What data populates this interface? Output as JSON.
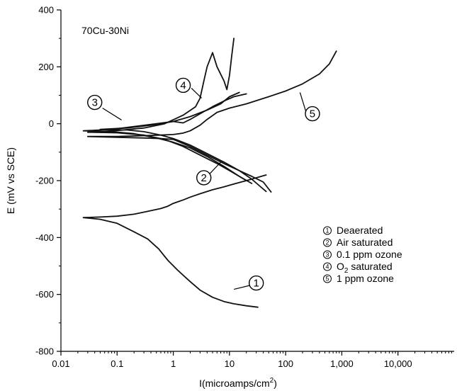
{
  "chart_data": {
    "type": "line",
    "annotation": "70Cu-30Ni",
    "xlabel": "I(microamps/cm",
    "xlabel_sup": "2",
    "xlabel_end": ")",
    "ylabel": "E (mV vs SCE)",
    "xscale": "log",
    "xlim": [
      0.01,
      100000
    ],
    "ylim": [
      -800,
      400
    ],
    "x_ticks": [
      0.01,
      0.1,
      1,
      10,
      100,
      1000,
      10000
    ],
    "x_tick_labels": [
      "0.01",
      "0.1",
      "1",
      "10",
      "100",
      "1,000",
      "10,000"
    ],
    "y_ticks": [
      400,
      200,
      0,
      -200,
      -400,
      -600,
      -800
    ],
    "y_tick_labels": [
      "400",
      "200",
      "0",
      "-200",
      "-400",
      "-600",
      "-800"
    ],
    "legend": {
      "placement": "bottom-right",
      "items": [
        {
          "marker": "1",
          "label": "Deaerated"
        },
        {
          "marker": "2",
          "label": "Air saturated"
        },
        {
          "marker": "3",
          "label": "0.1 ppm ozone"
        },
        {
          "marker": "4",
          "label": "O",
          "sub": "2",
          "label_end": " saturated"
        },
        {
          "marker": "5",
          "label": "1 ppm ozone"
        }
      ]
    },
    "series": [
      {
        "marker": "1",
        "points": [
          [
            0.025,
            -330
          ],
          [
            0.05,
            -328
          ],
          [
            0.1,
            -325
          ],
          [
            0.2,
            -318
          ],
          [
            0.35,
            -308
          ],
          [
            0.6,
            -298
          ],
          [
            0.8,
            -290
          ],
          [
            1,
            -280
          ],
          [
            1.5,
            -268
          ],
          [
            2,
            -258
          ],
          [
            3,
            -246
          ],
          [
            5,
            -232
          ],
          [
            8,
            -222
          ],
          [
            12,
            -212
          ],
          [
            20,
            -200
          ],
          [
            30,
            -190
          ],
          [
            45,
            -180
          ],
          [
            0.025,
            -330
          ],
          [
            0.05,
            -336
          ],
          [
            0.1,
            -350
          ],
          [
            0.2,
            -380
          ],
          [
            0.35,
            -405
          ],
          [
            0.55,
            -440
          ],
          [
            0.8,
            -480
          ],
          [
            1.2,
            -515
          ],
          [
            2,
            -555
          ],
          [
            3,
            -585
          ],
          [
            5,
            -610
          ],
          [
            8,
            -625
          ],
          [
            12,
            -633
          ],
          [
            20,
            -640
          ],
          [
            32,
            -645
          ]
        ]
      },
      {
        "marker": "2",
        "points": [
          [
            0.05,
            -20
          ],
          [
            0.15,
            -22
          ],
          [
            0.3,
            -28
          ],
          [
            0.6,
            -40
          ],
          [
            1,
            -52
          ],
          [
            2,
            -75
          ],
          [
            4,
            -105
          ],
          [
            8,
            -135
          ],
          [
            15,
            -165
          ],
          [
            25,
            -195
          ],
          [
            35,
            -220
          ],
          [
            45,
            -238
          ],
          [
            0.05,
            -20
          ],
          [
            0.15,
            -15
          ],
          [
            0.4,
            -5
          ],
          [
            1,
            8
          ],
          [
            2,
            25
          ],
          [
            4,
            48
          ],
          [
            7,
            70
          ],
          [
            10,
            95
          ],
          [
            15,
            110
          ]
        ]
      },
      {
        "marker": "3",
        "points": [
          [
            0.025,
            -25
          ],
          [
            0.08,
            -28
          ],
          [
            0.2,
            -35
          ],
          [
            0.5,
            -50
          ],
          [
            1,
            -65
          ],
          [
            2,
            -85
          ],
          [
            4,
            -115
          ],
          [
            8,
            -150
          ],
          [
            15,
            -185
          ],
          [
            25,
            -210
          ],
          [
            0.025,
            -25
          ],
          [
            0.08,
            -20
          ],
          [
            0.2,
            -10
          ],
          [
            0.5,
            0
          ],
          [
            1,
            8
          ],
          [
            1.5,
            3
          ],
          [
            2,
            15
          ],
          [
            3,
            35
          ],
          [
            5,
            60
          ],
          [
            8,
            80
          ],
          [
            12,
            95
          ],
          [
            20,
            105
          ]
        ]
      },
      {
        "marker": "4",
        "points": [
          [
            0.03,
            -30
          ],
          [
            0.1,
            -32
          ],
          [
            0.3,
            -40
          ],
          [
            0.7,
            -55
          ],
          [
            1.5,
            -80
          ],
          [
            3,
            -110
          ],
          [
            6,
            -140
          ],
          [
            10,
            -165
          ],
          [
            15,
            -185
          ],
          [
            20,
            -200
          ],
          [
            0.03,
            -30
          ],
          [
            0.1,
            -24
          ],
          [
            0.3,
            -15
          ],
          [
            0.7,
            0
          ],
          [
            1.5,
            30
          ],
          [
            2.5,
            60
          ],
          [
            3,
            90
          ],
          [
            3.5,
            150
          ],
          [
            4,
            200
          ],
          [
            5,
            250
          ],
          [
            6,
            200
          ],
          [
            8,
            150
          ],
          [
            9,
            120
          ],
          [
            10,
            170
          ],
          [
            11,
            240
          ],
          [
            12,
            300
          ]
        ]
      },
      {
        "marker": "5",
        "points": [
          [
            0.03,
            -45
          ],
          [
            0.1,
            -45
          ],
          [
            0.3,
            -42
          ],
          [
            0.6,
            -40
          ],
          [
            1,
            -38
          ],
          [
            1.5,
            -33
          ],
          [
            2,
            -25
          ],
          [
            3,
            -5
          ],
          [
            4,
            15
          ],
          [
            6,
            40
          ],
          [
            10,
            55
          ],
          [
            20,
            70
          ],
          [
            50,
            95
          ],
          [
            100,
            115
          ],
          [
            200,
            140
          ],
          [
            400,
            175
          ],
          [
            600,
            210
          ],
          [
            800,
            255
          ],
          [
            0.03,
            -45
          ],
          [
            0.1,
            -48
          ],
          [
            0.3,
            -50
          ],
          [
            0.6,
            -52
          ],
          [
            1,
            -55
          ],
          [
            2,
            -80
          ],
          [
            4,
            -110
          ],
          [
            8,
            -140
          ],
          [
            15,
            -165
          ],
          [
            25,
            -185
          ],
          [
            40,
            -205
          ],
          [
            55,
            -240
          ]
        ]
      }
    ],
    "callouts": [
      {
        "marker": "1",
        "x": 30,
        "y": -560
      },
      {
        "marker": "2",
        "x": 3.5,
        "y": -190
      },
      {
        "marker": "3",
        "x": 0.04,
        "y": 75
      },
      {
        "marker": "4",
        "x": 1.5,
        "y": 135
      },
      {
        "marker": "5",
        "x": 300,
        "y": 35
      }
    ],
    "callout_lines": [
      {
        "marker": "1",
        "from": [
          27,
          -565
        ],
        "to": [
          12,
          -582
        ]
      },
      {
        "marker": "2",
        "from": [
          4.5,
          -175
        ],
        "to": [
          7,
          -135
        ]
      },
      {
        "marker": "3",
        "from": [
          0.055,
          55
        ],
        "to": [
          0.12,
          13
        ]
      },
      {
        "marker": "4",
        "from": [
          2.1,
          125
        ],
        "to": [
          3.2,
          90
        ]
      },
      {
        "marker": "5",
        "from": [
          230,
          42
        ],
        "to": [
          180,
          110
        ]
      }
    ]
  }
}
